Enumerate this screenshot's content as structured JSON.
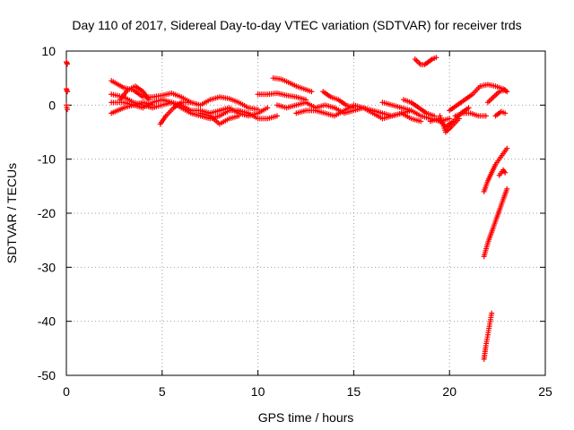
{
  "chart_data": {
    "type": "scatter",
    "title": "Day 110 of 2017, Sidereal Day-to-day VTEC variation (SDTVAR) for receiver trds",
    "xlabel": "GPS time / hours",
    "ylabel": "SDTVAR / TECUs",
    "xlim": [
      0,
      25
    ],
    "ylim": [
      -50,
      10
    ],
    "xticks": [
      "0",
      "5",
      "10",
      "15",
      "20",
      "25"
    ],
    "yticks": [
      "10",
      "0",
      "-10",
      "-20",
      "-30",
      "-40",
      "-50"
    ],
    "grid": true,
    "marker": "plus",
    "marker_color": "#ff0000",
    "series": [
      {
        "segments": [
          [
            [
              0.0,
              8.0
            ],
            [
              0.05,
              7.6
            ]
          ],
          [
            [
              0.0,
              3.0
            ],
            [
              0.05,
              2.5
            ]
          ],
          [
            [
              0.0,
              0.0
            ],
            [
              0.05,
              -0.8
            ]
          ],
          [
            [
              2.35,
              4.5
            ],
            [
              3.0,
              3.2
            ],
            [
              3.5,
              2.8
            ],
            [
              4.0,
              1.5
            ],
            [
              4.5,
              1.5
            ],
            [
              5.0,
              1.8
            ],
            [
              5.5,
              2.2
            ],
            [
              6.0,
              1.5
            ],
            [
              6.5,
              0.5
            ],
            [
              7.0,
              0.0
            ],
            [
              7.5,
              1.0
            ],
            [
              8.0,
              1.5
            ],
            [
              8.5,
              1.2
            ],
            [
              9.0,
              0.5
            ],
            [
              9.5,
              -0.5
            ],
            [
              10.0,
              -0.8
            ]
          ],
          [
            [
              2.35,
              2.0
            ],
            [
              3.0,
              1.5
            ],
            [
              3.5,
              0.5
            ],
            [
              4.0,
              0.0
            ],
            [
              4.5,
              -0.5
            ],
            [
              5.0,
              0.0
            ],
            [
              5.5,
              0.5
            ],
            [
              6.0,
              0.0
            ],
            [
              6.5,
              -1.0
            ],
            [
              7.0,
              -1.0
            ],
            [
              7.5,
              -1.5
            ],
            [
              8.0,
              -1.0
            ],
            [
              8.5,
              -0.5
            ],
            [
              9.0,
              -1.5
            ],
            [
              9.5,
              -2.0
            ],
            [
              10.0,
              -1.5
            ],
            [
              10.5,
              -0.5
            ]
          ],
          [
            [
              2.35,
              0.5
            ],
            [
              3.0,
              0.5
            ],
            [
              3.5,
              0.0
            ],
            [
              4.0,
              -0.5
            ],
            [
              4.5,
              0.5
            ],
            [
              5.0,
              1.0
            ],
            [
              5.5,
              0.5
            ],
            [
              6.0,
              -0.5
            ],
            [
              6.5,
              -1.5
            ],
            [
              7.0,
              -2.0
            ],
            [
              7.5,
              -2.5
            ],
            [
              8.0,
              -2.0
            ],
            [
              8.5,
              -1.0
            ],
            [
              9.0,
              -1.0
            ],
            [
              9.5,
              -1.5
            ],
            [
              10.0,
              -2.5
            ],
            [
              10.5,
              -2.5
            ],
            [
              11.0,
              -2.0
            ]
          ],
          [
            [
              2.35,
              -1.5
            ],
            [
              3.0,
              -0.5
            ],
            [
              3.5,
              0.0
            ],
            [
              4.0,
              0.5
            ],
            [
              4.5,
              0.0
            ]
          ],
          [
            [
              2.8,
              1.0
            ],
            [
              3.2,
              2.8
            ],
            [
              3.6,
              3.5
            ],
            [
              4.0,
              2.5
            ],
            [
              4.3,
              1.0
            ]
          ],
          [
            [
              4.9,
              -3.5
            ],
            [
              5.2,
              -2.0
            ],
            [
              5.6,
              -0.5
            ],
            [
              6.0,
              0.5
            ],
            [
              6.5,
              0.5
            ]
          ],
          [
            [
              7.0,
              -1.5
            ],
            [
              7.5,
              -2.0
            ],
            [
              8.0,
              -3.5
            ],
            [
              8.5,
              -2.5
            ],
            [
              9.0,
              -2.0
            ]
          ],
          [
            [
              10.0,
              2.0
            ],
            [
              10.5,
              2.0
            ],
            [
              11.0,
              2.2
            ],
            [
              11.5,
              1.8
            ],
            [
              12.0,
              1.5
            ],
            [
              12.5,
              1.0
            ]
          ],
          [
            [
              10.8,
              5.0
            ],
            [
              11.2,
              4.8
            ],
            [
              11.6,
              4.2
            ],
            [
              12.0,
              3.5
            ],
            [
              12.4,
              3.0
            ],
            [
              12.8,
              2.5
            ]
          ],
          [
            [
              11.0,
              0.0
            ],
            [
              11.5,
              -0.5
            ],
            [
              12.0,
              0.0
            ],
            [
              12.5,
              0.5
            ],
            [
              13.0,
              -0.5
            ],
            [
              13.5,
              0.0
            ],
            [
              14.0,
              -0.5
            ],
            [
              14.5,
              -1.5
            ],
            [
              15.0,
              -1.0
            ],
            [
              15.5,
              -0.5
            ],
            [
              16.0,
              -1.0
            ],
            [
              16.5,
              -1.5
            ],
            [
              17.0,
              -2.0
            ],
            [
              17.5,
              -1.5
            ],
            [
              18.0,
              -1.0
            ],
            [
              18.5,
              -2.0
            ],
            [
              19.0,
              -2.5
            ],
            [
              19.5,
              -3.0
            ],
            [
              20.0,
              -2.5
            ]
          ],
          [
            [
              12.0,
              -1.5
            ],
            [
              12.5,
              -1.0
            ],
            [
              13.0,
              -1.0
            ],
            [
              13.5,
              -1.5
            ],
            [
              14.0,
              -2.0
            ],
            [
              14.5,
              -1.0
            ],
            [
              15.0,
              0.0
            ],
            [
              15.5,
              -0.5
            ],
            [
              16.0,
              -1.5
            ],
            [
              16.5,
              -2.5
            ],
            [
              17.0,
              -2.0
            ],
            [
              17.5,
              -1.5
            ],
            [
              18.0,
              -2.5
            ],
            [
              18.5,
              -3.0
            ]
          ],
          [
            [
              13.4,
              2.5
            ],
            [
              13.8,
              1.5
            ],
            [
              14.2,
              1.0
            ],
            [
              14.6,
              0.0
            ],
            [
              15.0,
              -0.5
            ]
          ],
          [
            [
              16.5,
              0.5
            ],
            [
              17.0,
              0.0
            ],
            [
              17.5,
              -0.5
            ],
            [
              18.0,
              -1.0
            ]
          ],
          [
            [
              17.6,
              1.0
            ],
            [
              18.0,
              0.5
            ],
            [
              18.4,
              -0.5
            ],
            [
              18.8,
              -1.5
            ],
            [
              19.2,
              -2.0
            ]
          ],
          [
            [
              18.2,
              8.5
            ],
            [
              18.5,
              7.5
            ],
            [
              18.7,
              7.5
            ],
            [
              18.9,
              8.0
            ],
            [
              19.1,
              8.5
            ],
            [
              19.3,
              8.8
            ]
          ],
          [
            [
              19.0,
              -3.0
            ],
            [
              19.4,
              -2.5
            ],
            [
              19.8,
              -4.0
            ],
            [
              20.2,
              -3.0
            ],
            [
              20.6,
              -1.5
            ],
            [
              21.0,
              -0.5
            ]
          ],
          [
            [
              19.5,
              -2.0
            ],
            [
              19.8,
              -5.0
            ],
            [
              20.1,
              -4.0
            ],
            [
              20.5,
              -2.5
            ]
          ],
          [
            [
              20.0,
              -1.0
            ],
            [
              20.4,
              0.0
            ],
            [
              20.8,
              1.0
            ],
            [
              21.2,
              2.0
            ],
            [
              21.6,
              3.5
            ],
            [
              22.0,
              3.8
            ],
            [
              22.4,
              3.5
            ],
            [
              22.8,
              3.0
            ],
            [
              23.0,
              2.5
            ]
          ],
          [
            [
              20.3,
              -2.0
            ],
            [
              20.7,
              -1.5
            ],
            [
              21.1,
              -1.5
            ],
            [
              21.5,
              -2.0
            ],
            [
              21.9,
              -2.0
            ]
          ],
          [
            [
              22.0,
              0.5
            ],
            [
              22.3,
              1.5
            ],
            [
              22.6,
              2.5
            ],
            [
              22.9,
              2.8
            ]
          ],
          [
            [
              22.4,
              -2.0
            ],
            [
              22.7,
              -1.2
            ],
            [
              22.9,
              -1.5
            ]
          ],
          [
            [
              21.8,
              -16.0
            ],
            [
              22.0,
              -14.0
            ],
            [
              22.2,
              -12.5
            ],
            [
              22.4,
              -11.0
            ],
            [
              22.6,
              -10.0
            ],
            [
              22.8,
              -9.0
            ],
            [
              23.0,
              -8.0
            ]
          ],
          [
            [
              22.6,
              -13.0
            ],
            [
              22.8,
              -12.0
            ],
            [
              22.9,
              -12.5
            ]
          ],
          [
            [
              21.8,
              -28.0
            ],
            [
              22.0,
              -25.5
            ],
            [
              22.2,
              -23.5
            ],
            [
              22.4,
              -21.5
            ],
            [
              22.6,
              -19.5
            ],
            [
              22.8,
              -17.5
            ],
            [
              23.0,
              -15.5
            ]
          ],
          [
            [
              21.8,
              -47.0
            ],
            [
              21.9,
              -44.5
            ],
            [
              22.0,
              -42.5
            ],
            [
              22.1,
              -40.5
            ],
            [
              22.2,
              -38.5
            ]
          ]
        ]
      }
    ]
  }
}
